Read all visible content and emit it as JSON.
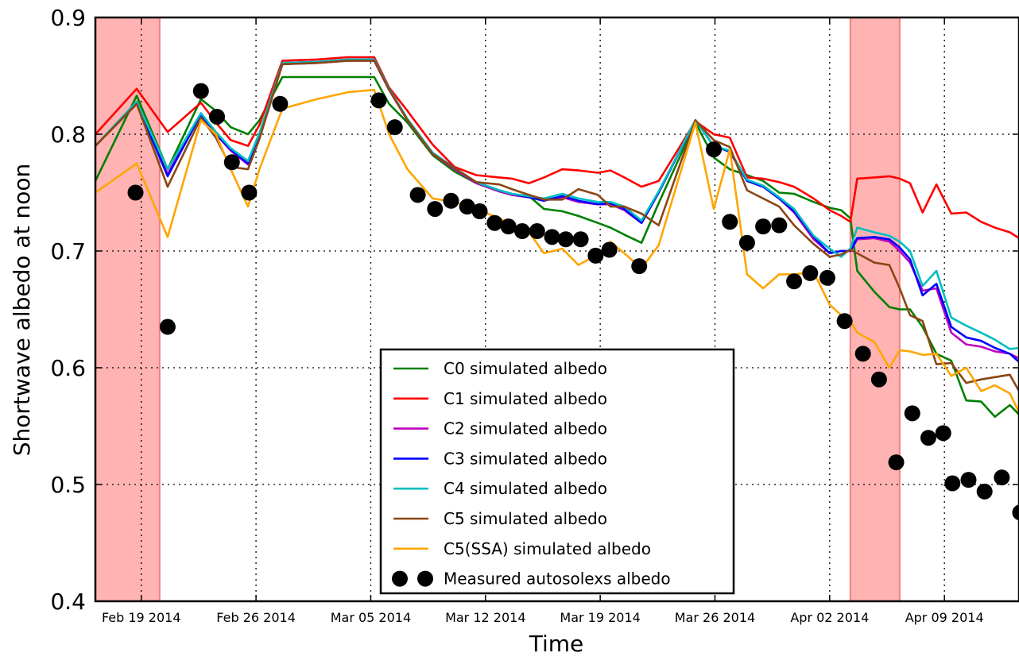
{
  "chart_data": {
    "type": "line",
    "xlabel": "Time",
    "ylabel": "Shortwave albedo at noon",
    "ylim": [
      0.4,
      0.9
    ],
    "xlim": [
      0,
      80.5
    ],
    "x_axis_note": "days since Feb 15 2014",
    "yticks": [
      0.4,
      0.5,
      0.6,
      0.7,
      0.8,
      0.9
    ],
    "ytick_labels": [
      "0.4",
      "0.5",
      "0.6",
      "0.7",
      "0.8",
      "0.9"
    ],
    "xticks": [
      {
        "x": 4,
        "label": "Feb 19 2014"
      },
      {
        "x": 14,
        "label": "Feb 26 2014"
      },
      {
        "x": 24,
        "label": "Mar 05 2014"
      },
      {
        "x": 34,
        "label": "Mar 12 2014"
      },
      {
        "x": 44,
        "label": "Mar 19 2014"
      },
      {
        "x": 54,
        "label": "Mar 26 2014"
      },
      {
        "x": 64,
        "label": "Apr 02 2014"
      },
      {
        "x": 74,
        "label": "Apr 09 2014"
      }
    ],
    "grid": true,
    "legend_position": "lower-center",
    "shaded_spans": [
      {
        "x0": 0,
        "x1": 5.6
      },
      {
        "x0": 65.8,
        "x1": 70.1
      }
    ],
    "series": [
      {
        "name": "C0 simulated albedo",
        "color": "#008000",
        "kind": "line",
        "x": [
          0,
          3.6,
          6.3,
          9.2,
          10.5,
          11.8,
          13.3,
          14.3,
          16.3,
          19.3,
          22,
          24.3,
          25.6,
          27.2,
          29.4,
          31.3,
          33.2,
          35.2,
          36.3,
          37.8,
          39.1,
          40.7,
          42.1,
          43.8,
          44.9,
          46.1,
          47.6,
          49.1,
          52.3,
          53.9,
          55.3,
          56.8,
          58.2,
          59.6,
          60.9,
          62.6,
          64,
          65,
          65.8,
          66.4,
          67.9,
          69.2,
          70.1,
          71,
          72.1,
          73.3,
          74.6,
          75.9,
          77.2,
          78.4,
          79.7,
          80.5
        ],
        "y": [
          0.76,
          0.833,
          0.77,
          0.83,
          0.82,
          0.806,
          0.8,
          0.812,
          0.849,
          0.849,
          0.849,
          0.849,
          0.826,
          0.81,
          0.782,
          0.768,
          0.758,
          0.751,
          0.748,
          0.747,
          0.736,
          0.734,
          0.73,
          0.724,
          0.72,
          0.714,
          0.707,
          0.741,
          0.81,
          0.78,
          0.77,
          0.765,
          0.76,
          0.75,
          0.749,
          0.742,
          0.737,
          0.735,
          0.728,
          0.683,
          0.665,
          0.652,
          0.65,
          0.65,
          0.635,
          0.612,
          0.606,
          0.572,
          0.571,
          0.558,
          0.568,
          0.56
        ]
      },
      {
        "name": "C1 simulated albedo",
        "color": "#ff0000",
        "kind": "line",
        "x": [
          0,
          3.6,
          6.3,
          9.2,
          10.5,
          11.8,
          13.3,
          14.3,
          16.3,
          19.3,
          22,
          24.3,
          25.6,
          27.2,
          29.4,
          31.3,
          33.2,
          35.2,
          36.3,
          37.8,
          39.1,
          40.7,
          42.1,
          43.8,
          44.9,
          46.1,
          47.6,
          49.1,
          52.3,
          53.9,
          55.3,
          56.8,
          58.2,
          59.6,
          60.9,
          62.6,
          64,
          65,
          65.8,
          66.4,
          67.9,
          69.2,
          70.1,
          71,
          72.1,
          73.3,
          74.6,
          75.9,
          77.2,
          78.4,
          79.7,
          80.5
        ],
        "y": [
          0.8,
          0.839,
          0.802,
          0.827,
          0.81,
          0.795,
          0.79,
          0.808,
          0.863,
          0.864,
          0.866,
          0.866,
          0.84,
          0.82,
          0.791,
          0.772,
          0.765,
          0.763,
          0.762,
          0.758,
          0.763,
          0.77,
          0.769,
          0.767,
          0.769,
          0.763,
          0.755,
          0.76,
          0.811,
          0.8,
          0.797,
          0.763,
          0.762,
          0.759,
          0.755,
          0.745,
          0.735,
          0.73,
          0.725,
          0.762,
          0.763,
          0.764,
          0.762,
          0.758,
          0.733,
          0.757,
          0.732,
          0.733,
          0.725,
          0.72,
          0.716,
          0.711
        ]
      },
      {
        "name": "C2 simulated albedo",
        "color": "#bf00bf",
        "kind": "line",
        "x": [
          0,
          3.6,
          6.3,
          9.2,
          10.5,
          11.8,
          13.3,
          14.3,
          16.3,
          19.3,
          22,
          24.3,
          25.6,
          27.2,
          29.4,
          31.3,
          33.2,
          35.2,
          36.3,
          37.8,
          39.1,
          40.7,
          42.1,
          43.8,
          44.9,
          46.1,
          47.6,
          49.1,
          52.3,
          53.9,
          55.3,
          56.8,
          58.2,
          59.6,
          60.9,
          62.6,
          64,
          65,
          65.8,
          66.4,
          67.9,
          69.2,
          70.1,
          71,
          72.1,
          73.3,
          74.6,
          75.9,
          77.2,
          78.4,
          79.7,
          80.5
        ],
        "y": [
          0.79,
          0.826,
          0.766,
          0.817,
          0.8,
          0.786,
          0.774,
          0.8,
          0.86,
          0.861,
          0.863,
          0.863,
          0.838,
          0.812,
          0.783,
          0.77,
          0.758,
          0.751,
          0.748,
          0.746,
          0.744,
          0.746,
          0.742,
          0.74,
          0.74,
          0.735,
          0.724,
          0.75,
          0.812,
          0.79,
          0.785,
          0.76,
          0.755,
          0.745,
          0.733,
          0.71,
          0.698,
          0.7,
          0.7,
          0.71,
          0.711,
          0.708,
          0.7,
          0.69,
          0.666,
          0.668,
          0.63,
          0.62,
          0.618,
          0.614,
          0.612,
          0.608
        ]
      },
      {
        "name": "C3 simulated albedo",
        "color": "#0000ff",
        "kind": "line",
        "x": [
          0,
          3.6,
          6.3,
          9.2,
          10.5,
          11.8,
          13.3,
          14.3,
          16.3,
          19.3,
          22,
          24.3,
          25.6,
          27.2,
          29.4,
          31.3,
          33.2,
          35.2,
          36.3,
          37.8,
          39.1,
          40.7,
          42.1,
          43.8,
          44.9,
          46.1,
          47.6,
          49.1,
          52.3,
          53.9,
          55.3,
          56.8,
          58.2,
          59.6,
          60.9,
          62.6,
          64,
          65,
          65.8,
          66.4,
          67.9,
          69.2,
          70.1,
          71,
          72.1,
          73.3,
          74.6,
          75.9,
          77.2,
          78.4,
          79.7,
          80.5
        ],
        "y": [
          0.79,
          0.827,
          0.764,
          0.817,
          0.8,
          0.787,
          0.775,
          0.8,
          0.861,
          0.862,
          0.864,
          0.864,
          0.839,
          0.813,
          0.784,
          0.771,
          0.759,
          0.752,
          0.749,
          0.746,
          0.743,
          0.747,
          0.743,
          0.74,
          0.741,
          0.736,
          0.724,
          0.75,
          0.812,
          0.79,
          0.785,
          0.76,
          0.755,
          0.745,
          0.734,
          0.712,
          0.698,
          0.7,
          0.7,
          0.711,
          0.712,
          0.71,
          0.703,
          0.693,
          0.662,
          0.672,
          0.635,
          0.626,
          0.623,
          0.617,
          0.612,
          0.605
        ]
      },
      {
        "name": "C4 simulated albedo",
        "color": "#00bfbf",
        "kind": "line",
        "x": [
          0,
          3.6,
          6.3,
          9.2,
          10.5,
          11.8,
          13.3,
          14.3,
          16.3,
          19.3,
          22,
          24.3,
          25.6,
          27.2,
          29.4,
          31.3,
          33.2,
          35.2,
          36.3,
          37.8,
          39.1,
          40.7,
          42.1,
          43.8,
          44.9,
          46.1,
          47.6,
          49.1,
          52.3,
          53.9,
          55.3,
          56.8,
          58.2,
          59.6,
          60.9,
          62.6,
          64,
          65,
          65.8,
          66.4,
          67.9,
          69.2,
          70.1,
          71,
          72.1,
          73.3,
          74.6,
          75.9,
          77.2,
          78.4,
          79.7,
          80.5
        ],
        "y": [
          0.79,
          0.828,
          0.77,
          0.818,
          0.802,
          0.788,
          0.777,
          0.801,
          0.861,
          0.862,
          0.864,
          0.864,
          0.839,
          0.813,
          0.784,
          0.771,
          0.759,
          0.752,
          0.749,
          0.747,
          0.745,
          0.749,
          0.745,
          0.742,
          0.742,
          0.738,
          0.726,
          0.751,
          0.812,
          0.79,
          0.786,
          0.761,
          0.756,
          0.746,
          0.736,
          0.713,
          0.702,
          0.695,
          0.702,
          0.72,
          0.716,
          0.713,
          0.708,
          0.7,
          0.67,
          0.683,
          0.643,
          0.636,
          0.63,
          0.624,
          0.616,
          0.617
        ]
      },
      {
        "name": "C5 simulated albedo",
        "color": "#8b4513",
        "kind": "line",
        "x": [
          0,
          3.6,
          6.3,
          9.2,
          10.5,
          11.8,
          13.3,
          14.3,
          16.3,
          19.3,
          22,
          24.3,
          25.6,
          27.2,
          29.4,
          31.3,
          33.2,
          35.2,
          36.3,
          37.8,
          39.1,
          40.7,
          42.1,
          43.8,
          44.9,
          46.1,
          47.6,
          49.1,
          52.3,
          53.9,
          55.3,
          56.8,
          58.2,
          59.6,
          60.9,
          62.6,
          64,
          65,
          65.8,
          66.4,
          67.9,
          69.2,
          70.1,
          71,
          72.1,
          73.3,
          74.6,
          75.9,
          77.2,
          78.4,
          79.7,
          80.5
        ],
        "y": [
          0.79,
          0.826,
          0.755,
          0.814,
          0.797,
          0.772,
          0.77,
          0.796,
          0.86,
          0.861,
          0.863,
          0.863,
          0.838,
          0.812,
          0.783,
          0.771,
          0.759,
          0.757,
          0.753,
          0.748,
          0.744,
          0.744,
          0.753,
          0.748,
          0.738,
          0.738,
          0.732,
          0.722,
          0.812,
          0.795,
          0.789,
          0.752,
          0.745,
          0.738,
          0.722,
          0.706,
          0.695,
          0.697,
          0.701,
          0.698,
          0.69,
          0.688,
          0.668,
          0.645,
          0.64,
          0.603,
          0.604,
          0.587,
          0.59,
          0.592,
          0.594,
          0.58
        ]
      },
      {
        "name": "C5(SSA) simulated albedo",
        "color": "#ffa500",
        "kind": "line",
        "x": [
          0,
          3.6,
          6.3,
          9.2,
          10.5,
          11.8,
          13.3,
          14.3,
          16.3,
          19.3,
          22,
          24.3,
          25.6,
          27.2,
          29.4,
          31.3,
          33.2,
          35.2,
          36.3,
          37.8,
          39.1,
          40.7,
          42.1,
          43.8,
          44.9,
          46.1,
          47.6,
          49.1,
          52.3,
          53.9,
          55.3,
          56.8,
          58.2,
          59.6,
          60.9,
          62.6,
          64,
          65,
          65.8,
          66.4,
          67.9,
          69.2,
          70.1,
          71,
          72.1,
          73.3,
          74.6,
          75.9,
          77.2,
          78.4,
          79.7,
          80.5
        ],
        "y": [
          0.75,
          0.775,
          0.712,
          0.812,
          0.8,
          0.77,
          0.738,
          0.77,
          0.822,
          0.83,
          0.836,
          0.838,
          0.8,
          0.77,
          0.745,
          0.742,
          0.736,
          0.728,
          0.722,
          0.716,
          0.698,
          0.702,
          0.688,
          0.697,
          0.708,
          0.698,
          0.685,
          0.705,
          0.81,
          0.736,
          0.787,
          0.68,
          0.668,
          0.68,
          0.68,
          0.682,
          0.654,
          0.645,
          0.64,
          0.63,
          0.622,
          0.6,
          0.615,
          0.614,
          0.611,
          0.612,
          0.593,
          0.6,
          0.58,
          0.585,
          0.578,
          0.562
        ]
      },
      {
        "name": "Measured autosolexs albedo",
        "color": "#000000",
        "kind": "marker",
        "x": [
          3.5,
          6.3,
          9.2,
          10.6,
          11.9,
          13.4,
          16.1,
          24.7,
          26.1,
          28.1,
          29.6,
          31,
          32.4,
          33.5,
          34.8,
          36,
          37.2,
          38.5,
          39.8,
          41,
          42.3,
          43.6,
          44.8,
          47.4,
          53.9,
          55.3,
          56.8,
          58.2,
          59.6,
          60.9,
          62.3,
          63.8,
          65.3,
          66.9,
          68.3,
          69.8,
          71.2,
          72.6,
          73.9,
          74.7,
          76.1,
          77.5,
          79,
          80.6
        ],
        "y": [
          0.75,
          0.635,
          0.837,
          0.815,
          0.776,
          0.75,
          0.826,
          0.829,
          0.806,
          0.748,
          0.736,
          0.743,
          0.738,
          0.734,
          0.724,
          0.721,
          0.717,
          0.717,
          0.712,
          0.71,
          0.71,
          0.696,
          0.701,
          0.687,
          0.787,
          0.725,
          0.707,
          0.721,
          0.722,
          0.674,
          0.681,
          0.677,
          0.64,
          0.612,
          0.59,
          0.519,
          0.561,
          0.54,
          0.544,
          0.501,
          0.504,
          0.494,
          0.506,
          0.476
        ]
      }
    ]
  }
}
